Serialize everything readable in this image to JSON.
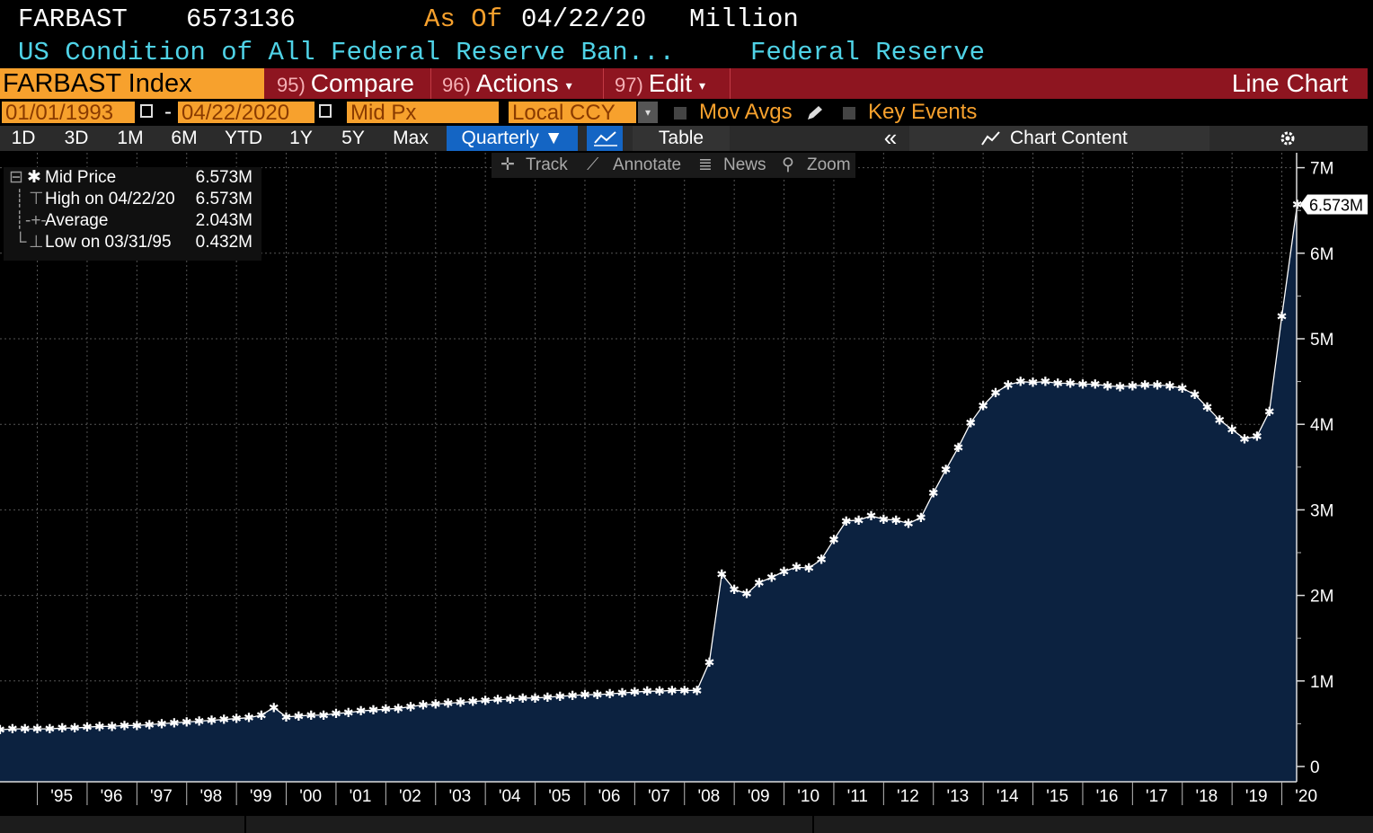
{
  "header": {
    "ticker": "FARBAST",
    "value": "6573136",
    "asof_label": "As Of",
    "asof_date": "04/22/20",
    "unit": "Million",
    "description": "US Condition of All Federal Reserve Ban...",
    "source": "Federal Reserve"
  },
  "toolbar": {
    "security": "FARBAST Index",
    "compare_num": "95)",
    "compare": "Compare",
    "actions_num": "96)",
    "actions": "Actions",
    "edit_num": "97)",
    "edit": "Edit",
    "chart_type": "Line Chart",
    "caret": "▾"
  },
  "range": {
    "start": "01/01/1993",
    "dash": "-",
    "end": "04/22/2020",
    "field": "Mid Px",
    "currency": "Local CCY",
    "mov_avgs": "Mov Avgs",
    "key_events": "Key Events"
  },
  "periods": [
    "1D",
    "3D",
    "1M",
    "6M",
    "YTD",
    "1Y",
    "5Y",
    "Max"
  ],
  "frequency": "Quarterly ▼",
  "table_label": "Table",
  "collapse": "«",
  "chart_content": "Chart Content",
  "tools": {
    "track": "Track",
    "annotate": "Annotate",
    "news": "News",
    "zoom": "Zoom"
  },
  "legend": [
    {
      "label": "Mid Price",
      "value": "6.573M"
    },
    {
      "label": "High on 04/22/20",
      "value": "6.573M"
    },
    {
      "label": "Average",
      "value": "2.043M"
    },
    {
      "label": "Low on 03/31/95",
      "value": "0.432M"
    }
  ],
  "colors": {
    "accent": "#f7a12d",
    "menubar": "#8e1520",
    "area": "#0c2240",
    "line": "#ffffff",
    "cyan": "#4fd2e6"
  },
  "chart_data": {
    "type": "area",
    "series": [
      {
        "name": "Mid Price",
        "x": [
          1994.25,
          1994.5,
          1994.75,
          1995,
          1995.25,
          1995.5,
          1995.75,
          1996,
          1996.25,
          1996.5,
          1996.75,
          1997,
          1997.25,
          1997.5,
          1997.75,
          1998,
          1998.25,
          1998.5,
          1998.75,
          1999,
          1999.25,
          1999.5,
          1999.75,
          2000,
          2000.25,
          2000.5,
          2000.75,
          2001,
          2001.25,
          2001.5,
          2001.75,
          2002,
          2002.25,
          2002.5,
          2002.75,
          2003,
          2003.25,
          2003.5,
          2003.75,
          2004,
          2004.25,
          2004.5,
          2004.75,
          2005,
          2005.25,
          2005.5,
          2005.75,
          2006,
          2006.25,
          2006.5,
          2006.75,
          2007,
          2007.25,
          2007.5,
          2007.75,
          2008,
          2008.25,
          2008.5,
          2008.75,
          2009,
          2009.25,
          2009.5,
          2009.75,
          2010,
          2010.25,
          2010.5,
          2010.75,
          2011,
          2011.25,
          2011.5,
          2011.75,
          2012,
          2012.25,
          2012.5,
          2012.75,
          2013,
          2013.25,
          2013.5,
          2013.75,
          2014,
          2014.25,
          2014.5,
          2014.75,
          2015,
          2015.25,
          2015.5,
          2015.75,
          2016,
          2016.25,
          2016.5,
          2016.75,
          2017,
          2017.25,
          2017.5,
          2017.75,
          2018,
          2018.25,
          2018.5,
          2018.75,
          2019,
          2019.25,
          2019.5,
          2019.75,
          2020,
          2020.31
        ],
        "y": [
          0.43,
          0.44,
          0.44,
          0.44,
          0.44,
          0.45,
          0.45,
          0.46,
          0.47,
          0.47,
          0.48,
          0.48,
          0.49,
          0.5,
          0.51,
          0.52,
          0.53,
          0.54,
          0.55,
          0.56,
          0.57,
          0.6,
          0.69,
          0.58,
          0.59,
          0.6,
          0.6,
          0.62,
          0.63,
          0.65,
          0.66,
          0.67,
          0.68,
          0.7,
          0.72,
          0.73,
          0.74,
          0.75,
          0.76,
          0.77,
          0.78,
          0.79,
          0.8,
          0.8,
          0.81,
          0.82,
          0.83,
          0.84,
          0.84,
          0.85,
          0.86,
          0.87,
          0.88,
          0.88,
          0.89,
          0.89,
          0.89,
          1.22,
          2.25,
          2.07,
          2.02,
          2.15,
          2.21,
          2.28,
          2.33,
          2.32,
          2.42,
          2.65,
          2.87,
          2.88,
          2.93,
          2.89,
          2.88,
          2.84,
          2.91,
          3.2,
          3.47,
          3.73,
          4.02,
          4.22,
          4.37,
          4.46,
          4.5,
          4.49,
          4.5,
          4.48,
          4.48,
          4.47,
          4.47,
          4.45,
          4.44,
          4.45,
          4.46,
          4.46,
          4.45,
          4.42,
          4.35,
          4.2,
          4.05,
          3.94,
          3.83,
          3.86,
          4.15,
          5.26,
          6.57
        ]
      }
    ],
    "last_value_label": "6.573M",
    "y_ticks": [
      "0",
      "1M",
      "2M",
      "3M",
      "4M",
      "5M",
      "6M",
      "7M"
    ],
    "x_ticks": [
      "'95",
      "'96",
      "'97",
      "'98",
      "'99",
      "'00",
      "'01",
      "'02",
      "'03",
      "'04",
      "'05",
      "'06",
      "'07",
      "'08",
      "'09",
      "'10",
      "'11",
      "'12",
      "'13",
      "'14",
      "'15",
      "'16",
      "'17",
      "'18",
      "'19",
      "'20"
    ],
    "ylim": [
      0,
      7
    ],
    "xlim": [
      1994.25,
      2020.5
    ],
    "grid": true,
    "legend_position": "top-left",
    "title": "",
    "xlabel": "",
    "ylabel": ""
  }
}
